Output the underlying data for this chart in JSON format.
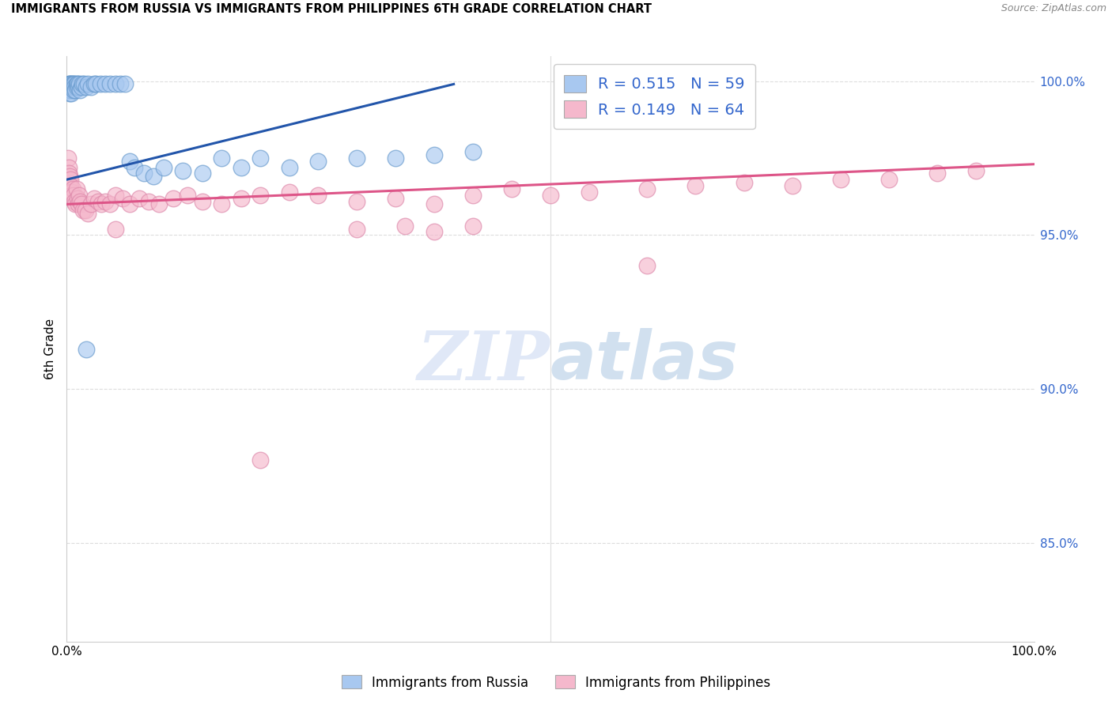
{
  "title": "IMMIGRANTS FROM RUSSIA VS IMMIGRANTS FROM PHILIPPINES 6TH GRADE CORRELATION CHART",
  "source": "Source: ZipAtlas.com",
  "ylabel": "6th Grade",
  "ylabel_ticks": [
    "100.0%",
    "95.0%",
    "90.0%",
    "85.0%"
  ],
  "ylabel_tick_vals": [
    1.0,
    0.95,
    0.9,
    0.85
  ],
  "legend_russia_R": "R = 0.515",
  "legend_russia_N": "N = 59",
  "legend_phil_R": "R = 0.149",
  "legend_phil_N": "N = 64",
  "russia_color": "#A8C8F0",
  "russia_edge_color": "#6699CC",
  "russia_line_color": "#2255AA",
  "phil_color": "#F5B8CC",
  "phil_edge_color": "#DD88AA",
  "phil_line_color": "#DD5588",
  "russia_scatter_x": [
    0.001,
    0.001,
    0.002,
    0.002,
    0.002,
    0.003,
    0.003,
    0.003,
    0.003,
    0.004,
    0.004,
    0.004,
    0.005,
    0.005,
    0.005,
    0.006,
    0.006,
    0.007,
    0.007,
    0.008,
    0.008,
    0.009,
    0.01,
    0.01,
    0.011,
    0.012,
    0.013,
    0.014,
    0.015,
    0.016,
    0.018,
    0.02,
    0.022,
    0.025,
    0.028,
    0.03,
    0.035,
    0.04,
    0.045,
    0.05,
    0.055,
    0.06,
    0.065,
    0.07,
    0.08,
    0.09,
    0.1,
    0.12,
    0.14,
    0.16,
    0.18,
    0.2,
    0.23,
    0.26,
    0.3,
    0.34,
    0.38,
    0.42,
    0.02
  ],
  "russia_scatter_y": [
    0.998,
    0.997,
    0.999,
    0.998,
    0.997,
    0.999,
    0.998,
    0.997,
    0.996,
    0.999,
    0.998,
    0.997,
    0.999,
    0.998,
    0.996,
    0.999,
    0.998,
    0.999,
    0.997,
    0.999,
    0.998,
    0.997,
    0.999,
    0.998,
    0.999,
    0.998,
    0.999,
    0.997,
    0.998,
    0.999,
    0.999,
    0.998,
    0.999,
    0.998,
    0.999,
    0.999,
    0.999,
    0.999,
    0.999,
    0.999,
    0.999,
    0.999,
    0.974,
    0.972,
    0.97,
    0.969,
    0.972,
    0.971,
    0.97,
    0.975,
    0.972,
    0.975,
    0.972,
    0.974,
    0.975,
    0.975,
    0.976,
    0.977,
    0.913
  ],
  "phil_scatter_x": [
    0.001,
    0.002,
    0.002,
    0.003,
    0.003,
    0.004,
    0.004,
    0.005,
    0.005,
    0.006,
    0.007,
    0.008,
    0.009,
    0.01,
    0.011,
    0.012,
    0.013,
    0.014,
    0.015,
    0.017,
    0.019,
    0.022,
    0.025,
    0.028,
    0.032,
    0.036,
    0.04,
    0.045,
    0.05,
    0.058,
    0.065,
    0.075,
    0.085,
    0.095,
    0.11,
    0.125,
    0.14,
    0.16,
    0.18,
    0.2,
    0.23,
    0.26,
    0.3,
    0.34,
    0.38,
    0.42,
    0.46,
    0.5,
    0.54,
    0.6,
    0.65,
    0.7,
    0.75,
    0.8,
    0.85,
    0.9,
    0.94,
    0.6,
    0.38,
    0.05,
    0.35,
    0.3,
    0.42,
    0.2
  ],
  "phil_scatter_y": [
    0.975,
    0.972,
    0.97,
    0.969,
    0.966,
    0.968,
    0.966,
    0.964,
    0.963,
    0.965,
    0.963,
    0.961,
    0.96,
    0.965,
    0.962,
    0.96,
    0.963,
    0.961,
    0.96,
    0.958,
    0.958,
    0.957,
    0.96,
    0.962,
    0.961,
    0.96,
    0.961,
    0.96,
    0.963,
    0.962,
    0.96,
    0.962,
    0.961,
    0.96,
    0.962,
    0.963,
    0.961,
    0.96,
    0.962,
    0.963,
    0.964,
    0.963,
    0.961,
    0.962,
    0.96,
    0.963,
    0.965,
    0.963,
    0.964,
    0.965,
    0.966,
    0.967,
    0.966,
    0.968,
    0.968,
    0.97,
    0.971,
    0.94,
    0.951,
    0.952,
    0.953,
    0.952,
    0.953,
    0.877
  ],
  "russia_trend_x": [
    0.0,
    0.4
  ],
  "russia_trend_y": [
    0.968,
    0.999
  ],
  "phil_trend_x": [
    0.0,
    1.0
  ],
  "phil_trend_y": [
    0.96,
    0.973
  ],
  "watermark_zip": "ZIP",
  "watermark_atlas": "atlas",
  "background_color": "#FFFFFF",
  "grid_color": "#DDDDDD",
  "right_axis_color": "#3366CC",
  "legend_text_color": "#3366CC",
  "xlim": [
    0.0,
    1.0
  ],
  "ylim": [
    0.818,
    1.008
  ]
}
